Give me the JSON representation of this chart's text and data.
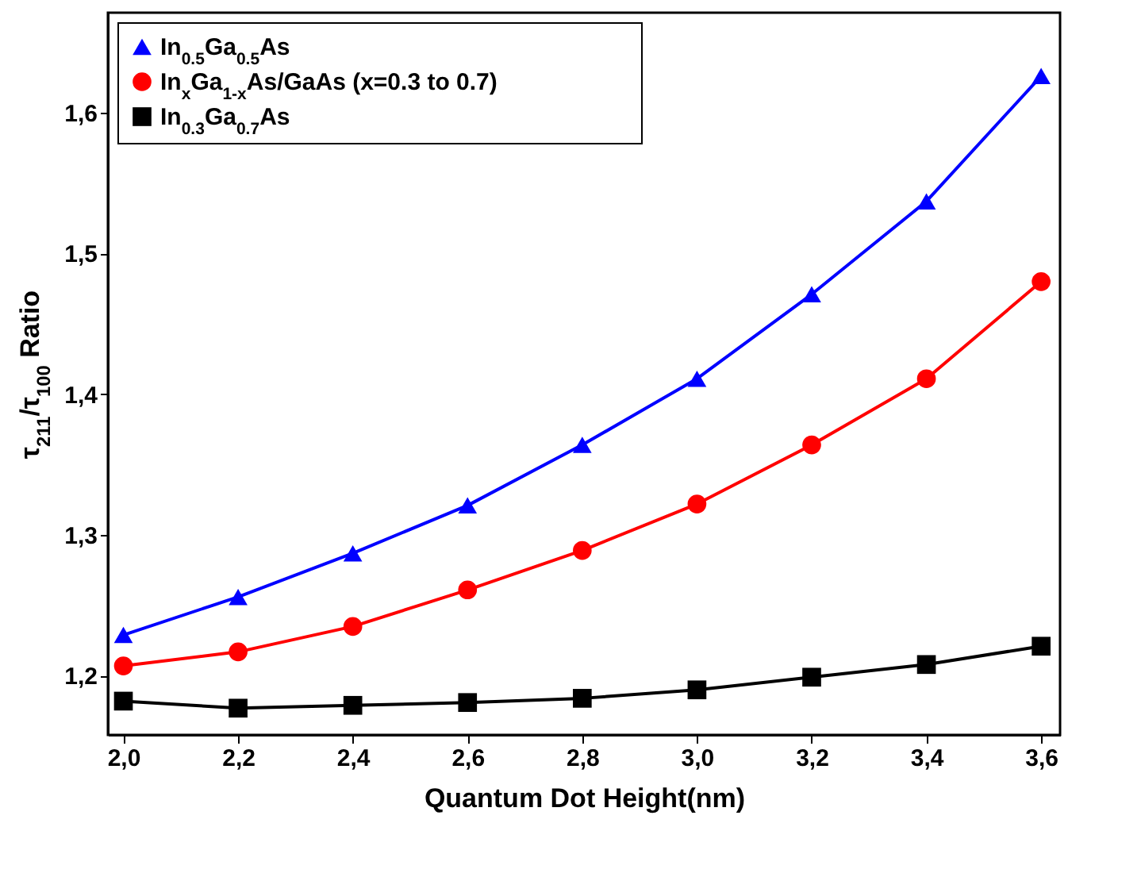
{
  "chart_data": {
    "type": "line",
    "xlabel": "Quantum Dot Height(nm)",
    "ylabel": "τ$_{211}$/τ$_{100}$ Ratio",
    "x": [
      2.0,
      2.2,
      2.4,
      2.6,
      2.8,
      3.0,
      3.2,
      3.4,
      3.6
    ],
    "series": [
      {
        "name": "In$_{0.5}$Ga$_{0.5}$As",
        "color": "#0000ff",
        "marker": "triangle",
        "values": [
          1.229,
          1.256,
          1.287,
          1.321,
          1.364,
          1.411,
          1.471,
          1.537,
          1.626
        ]
      },
      {
        "name": "In$_{x}$Ga$_{1-x}$As/GaAs (x=0.3 to 0.7)",
        "color": "#ff0000",
        "marker": "circle",
        "values": [
          1.207,
          1.217,
          1.235,
          1.261,
          1.289,
          1.322,
          1.364,
          1.411,
          1.48
        ]
      },
      {
        "name": "In$_{0.3}$Ga$_{0.7}$As",
        "color": "#000000",
        "marker": "square",
        "values": [
          1.182,
          1.177,
          1.179,
          1.181,
          1.184,
          1.19,
          1.199,
          1.208,
          1.221
        ]
      }
    ],
    "xlim": [
      1.973,
      3.633
    ],
    "xticks": [
      {
        "value": 2.0,
        "label": "2,0"
      },
      {
        "value": 2.2,
        "label": "2,2"
      },
      {
        "value": 2.4,
        "label": "2,4"
      },
      {
        "value": 2.6,
        "label": "2,6"
      },
      {
        "value": 2.8,
        "label": "2,8"
      },
      {
        "value": 3.0,
        "label": "3,0"
      },
      {
        "value": 3.2,
        "label": "3,2"
      },
      {
        "value": 3.4,
        "label": "3,4"
      },
      {
        "value": 3.6,
        "label": "3,6"
      }
    ],
    "ylim": [
      1.158,
      1.671
    ],
    "yticks": [
      {
        "value": 1.2,
        "label": "1,2"
      },
      {
        "value": 1.3,
        "label": "1,3"
      },
      {
        "value": 1.4,
        "label": "1,4"
      },
      {
        "value": 1.5,
        "label": "1,5"
      },
      {
        "value": 1.6,
        "label": "1,6"
      }
    ],
    "legend": "top left",
    "grid": false,
    "line_style": "solid"
  }
}
